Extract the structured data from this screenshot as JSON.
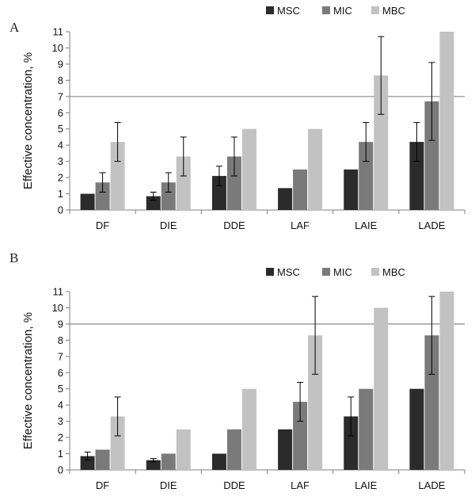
{
  "colors": {
    "MSC": "#2b2b2b",
    "MIC": "#7a7a7a",
    "MBC": "#c2c2c2",
    "axis": "#7f7f7f",
    "grid": "#8a8a8a",
    "errorbar": "#000000"
  },
  "chart_data": [
    {
      "panel": "A",
      "type": "bar",
      "ylabel": "Effective concentration, %",
      "ylim": [
        0,
        11
      ],
      "yticks": [
        0,
        1,
        2,
        3,
        4,
        5,
        6,
        7,
        8,
        9,
        10,
        11
      ],
      "grid": "horizontal at 7",
      "legend_position": "top-right",
      "categories": [
        "DF",
        "DIE",
        "DDE",
        "LAF",
        "LAIE",
        "LADE"
      ],
      "series": [
        {
          "name": "MSC",
          "values": [
            1.0,
            0.85,
            2.1,
            1.35,
            2.5,
            4.2
          ],
          "errors": [
            0,
            0.25,
            0.6,
            0,
            0,
            1.2
          ]
        },
        {
          "name": "MIC",
          "values": [
            1.7,
            1.7,
            3.3,
            2.5,
            4.2,
            6.7
          ],
          "errors": [
            0.6,
            0.6,
            1.2,
            0,
            1.2,
            2.4
          ]
        },
        {
          "name": "MBC",
          "values": [
            4.2,
            3.3,
            5.0,
            5.0,
            8.3,
            11.0
          ],
          "errors": [
            1.2,
            1.2,
            0,
            0,
            2.4,
            0
          ]
        }
      ]
    },
    {
      "panel": "B",
      "type": "bar",
      "ylabel": "Effective concentration, %",
      "ylim": [
        0,
        11
      ],
      "yticks": [
        0,
        1,
        2,
        3,
        4,
        5,
        6,
        7,
        8,
        9,
        10,
        11
      ],
      "grid": "horizontal at 9",
      "legend_position": "top-right",
      "categories": [
        "DF",
        "DIE",
        "DDE",
        "LAF",
        "LAIE",
        "LADE"
      ],
      "series": [
        {
          "name": "MSC",
          "values": [
            0.85,
            0.6,
            1.0,
            2.5,
            3.3,
            5.0
          ],
          "errors": [
            0.25,
            0.1,
            0,
            0,
            1.2,
            0
          ]
        },
        {
          "name": "MIC",
          "values": [
            1.25,
            1.0,
            2.5,
            4.2,
            5.0,
            8.3
          ],
          "errors": [
            0,
            0,
            0,
            1.2,
            0,
            2.4
          ]
        },
        {
          "name": "MBC",
          "values": [
            3.3,
            2.5,
            5.0,
            8.3,
            10.0,
            11.0
          ],
          "errors": [
            1.2,
            0,
            0,
            2.4,
            0,
            0
          ]
        }
      ]
    }
  ]
}
